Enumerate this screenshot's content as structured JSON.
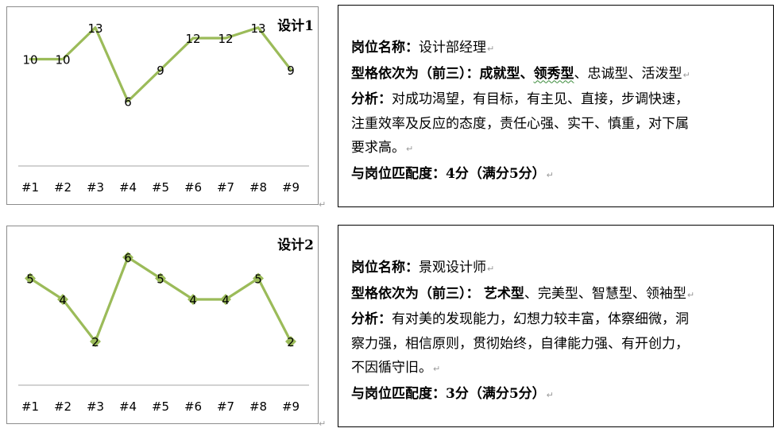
{
  "chart_data": [
    {
      "type": "line",
      "title": "设计1",
      "categories": [
        "#1",
        "#2",
        "#3",
        "#4",
        "#5",
        "#6",
        "#7",
        "#8",
        "#9"
      ],
      "values": [
        10,
        10,
        13,
        6,
        9,
        12,
        12,
        13,
        9
      ],
      "ylim": [
        0,
        20
      ],
      "marker": "none",
      "line_color": "#9bbb59",
      "grid": false,
      "legend": "none"
    },
    {
      "type": "line",
      "title": "设计2",
      "categories": [
        "#1",
        "#2",
        "#3",
        "#4",
        "#5",
        "#6",
        "#7",
        "#8",
        "#9"
      ],
      "values": [
        5,
        4,
        2,
        6,
        5,
        4,
        4,
        5,
        2
      ],
      "ylim": [
        0,
        10
      ],
      "marker": "diamond",
      "line_color": "#9bbb59",
      "grid": false,
      "legend": "none"
    }
  ],
  "profiles": [
    {
      "position_label": "岗位名称：",
      "position_value": "设计部经理",
      "types_label": "型格依次为（前三）：",
      "types_bold": "成就型",
      "types_sep1": "、",
      "types_bold2": "领秀型",
      "types_rest": "、忠诚型、活泼型",
      "analysis_label": "分析：",
      "analysis_line1": "对成功渴望，有目标，有主见、直接，步调快速，",
      "analysis_line2": "注重效率及反应的态度，责任心强、实干、慎重，对下属",
      "analysis_line3": "要求高。",
      "match_text": "与岗位匹配度：4分（满分5分）"
    },
    {
      "position_label": "岗位名称：",
      "position_value": "景观设计师",
      "types_label": "型格依次为（前三）：",
      "types_bold": "艺术型",
      "types_rest": "、完美型、智慧型、领袖型",
      "analysis_label": "分析：",
      "analysis_line1": "有对美的发现能力，幻想力较丰富，体察细微，洞",
      "analysis_line2": "察力强，相信原则，贯彻始终，自律能力强、有开创力，",
      "analysis_line3": "不因循守旧。",
      "match_text": "与岗位匹配度：3分（满分5分）"
    }
  ],
  "colors": {
    "series": "#9bbb59",
    "axis": "#a6a6a6",
    "border": "#8c8c8c"
  },
  "paragraph_mark": "↵"
}
